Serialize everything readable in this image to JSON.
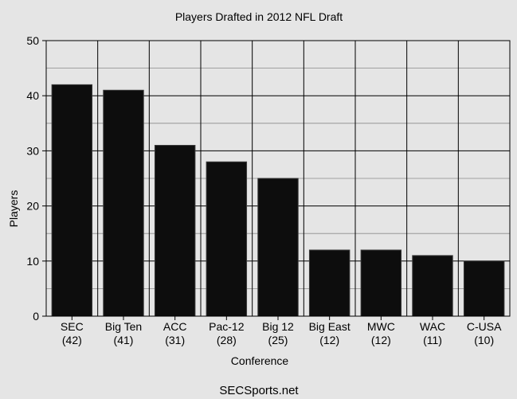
{
  "chart_data": {
    "type": "bar",
    "title": "Players Drafted in 2012 NFL Draft",
    "xlabel": "Conference",
    "ylabel": "Players",
    "categories": [
      "SEC",
      "Big Ten",
      "ACC",
      "Pac-12",
      "Big 12",
      "Big East",
      "MWC",
      "WAC",
      "C-USA"
    ],
    "category_counts": [
      "(42)",
      "(41)",
      "(31)",
      "(28)",
      "(25)",
      "(12)",
      "(12)",
      "(11)",
      "(10)"
    ],
    "values": [
      42,
      41,
      31,
      28,
      25,
      12,
      12,
      11,
      10
    ],
    "ylim": [
      0,
      50
    ],
    "yticks": [
      0,
      10,
      20,
      30,
      40,
      50
    ],
    "grid": true,
    "bar_color": "#0d0d0d",
    "background_color": "#e5e5e5",
    "credit": "SECSports.net"
  }
}
